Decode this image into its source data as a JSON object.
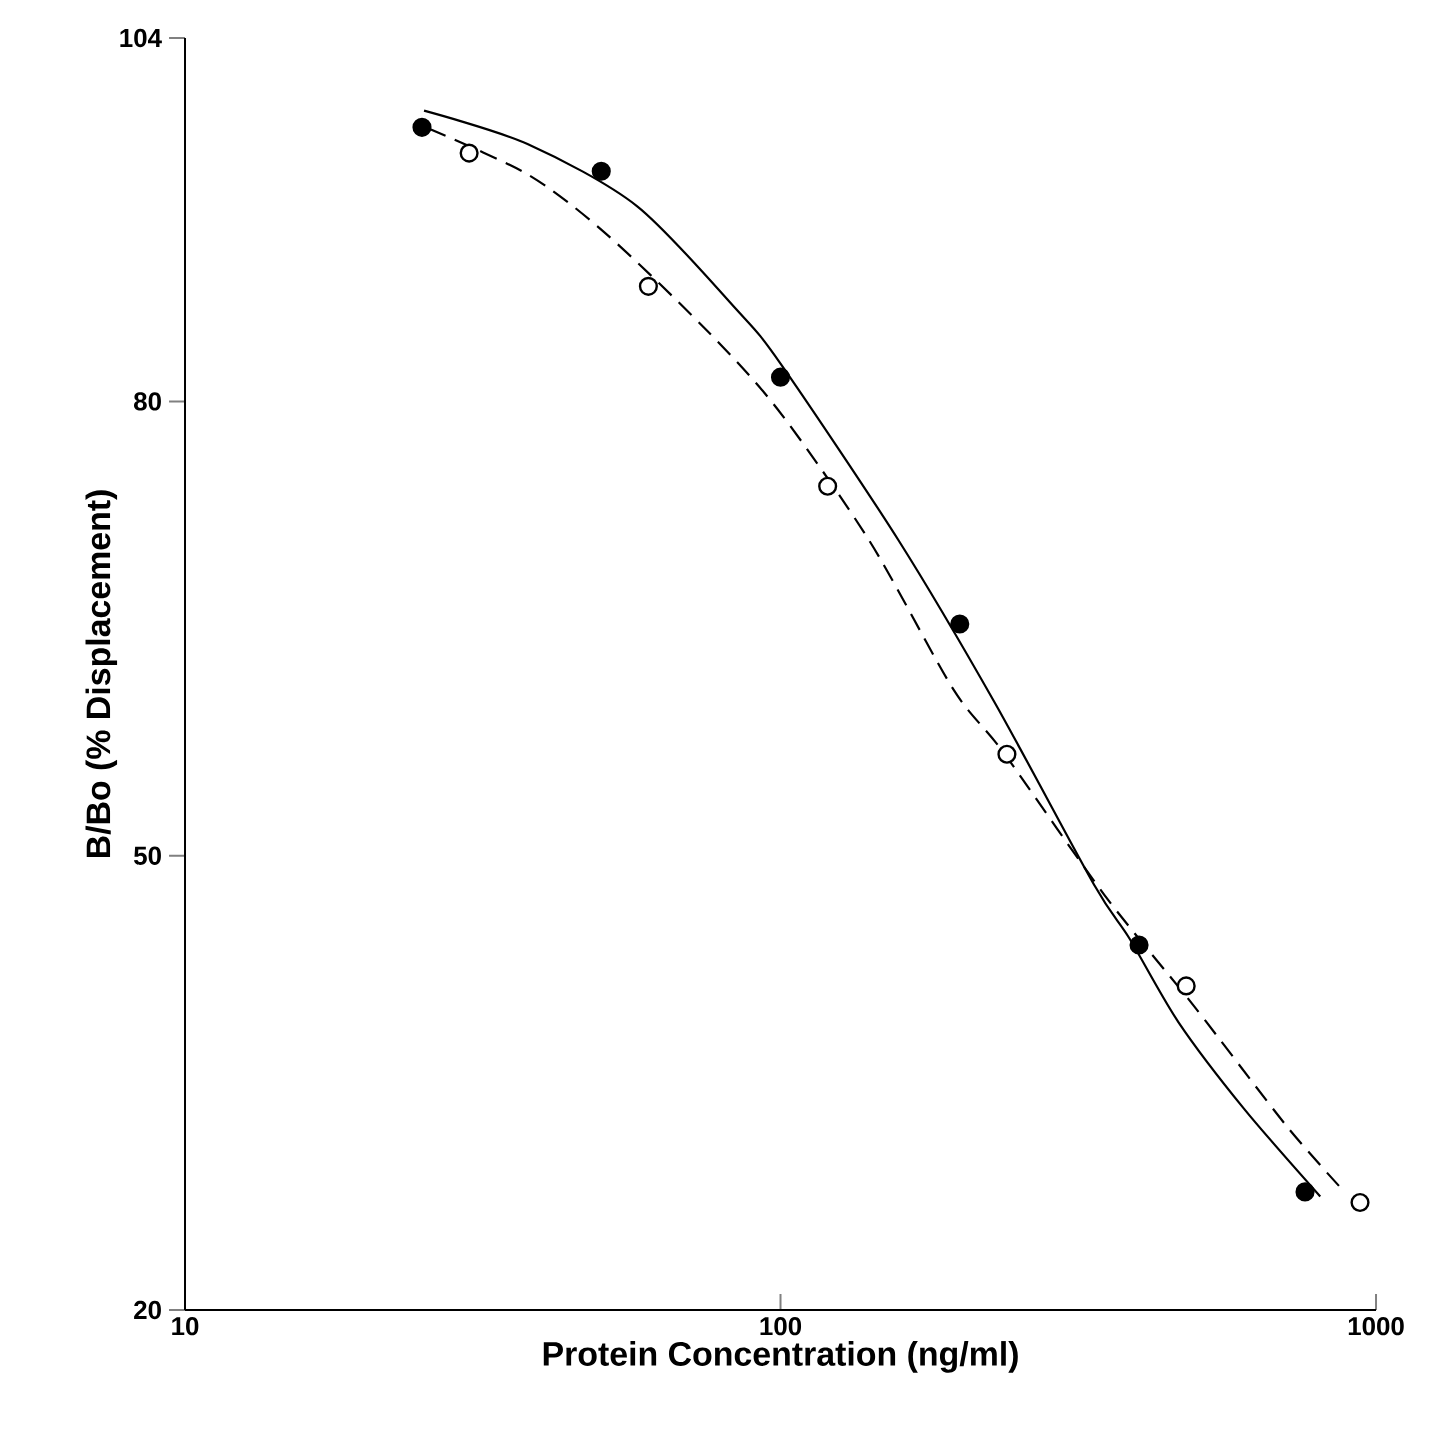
{
  "chart_data": {
    "type": "scatter",
    "xlabel": "Protein Concentration (ng/ml)",
    "ylabel": "B/Bo (% Displacement)",
    "log": "x",
    "xlim": [
      10,
      1000
    ],
    "xticks": [
      10,
      100,
      1000
    ],
    "ylim": [
      20,
      104
    ],
    "yticks": [
      20,
      50,
      80,
      104
    ],
    "grid": false,
    "series": [
      {
        "marker": "circle",
        "color": "#000000",
        "x": [
          25,
          50,
          100,
          200,
          400,
          760
        ],
        "values": [
          98.1,
          95.2,
          81.6,
          65.3,
          44.1,
          27.8
        ]
      },
      {
        "marker": "circle",
        "color": "#000000",
        "x": [
          30,
          60,
          120,
          240,
          480,
          940
        ],
        "values": [
          96.4,
          87.6,
          74.4,
          56.7,
          41.4,
          27.1
        ]
      },
      {
        "type": "line",
        "marker": "none",
        "line_style": "solid",
        "color": "#000000",
        "x": [
          25.2,
          37.6,
          57.4,
          84.2,
          100,
          158,
          229,
          336,
          386,
          466,
          600,
          806
        ],
        "values": [
          99.2,
          97.0,
          92.9,
          86.1,
          82.5,
          70.8,
          60.1,
          48.1,
          44.5,
          39.0,
          33.3,
          27.5
        ]
      },
      {
        "type": "line",
        "marker": "none",
        "line_style": "dashed",
        "color": "#000000",
        "x": [
          25.7,
          37.6,
          50.5,
          74.3,
          98.8,
          141,
          195,
          237,
          350,
          494,
          706,
          885
        ],
        "values": [
          98.0,
          95.0,
          91.2,
          84.9,
          79.5,
          70.8,
          61.0,
          56.8,
          47.4,
          40.1,
          32.2,
          27.8
        ]
      }
    ]
  }
}
